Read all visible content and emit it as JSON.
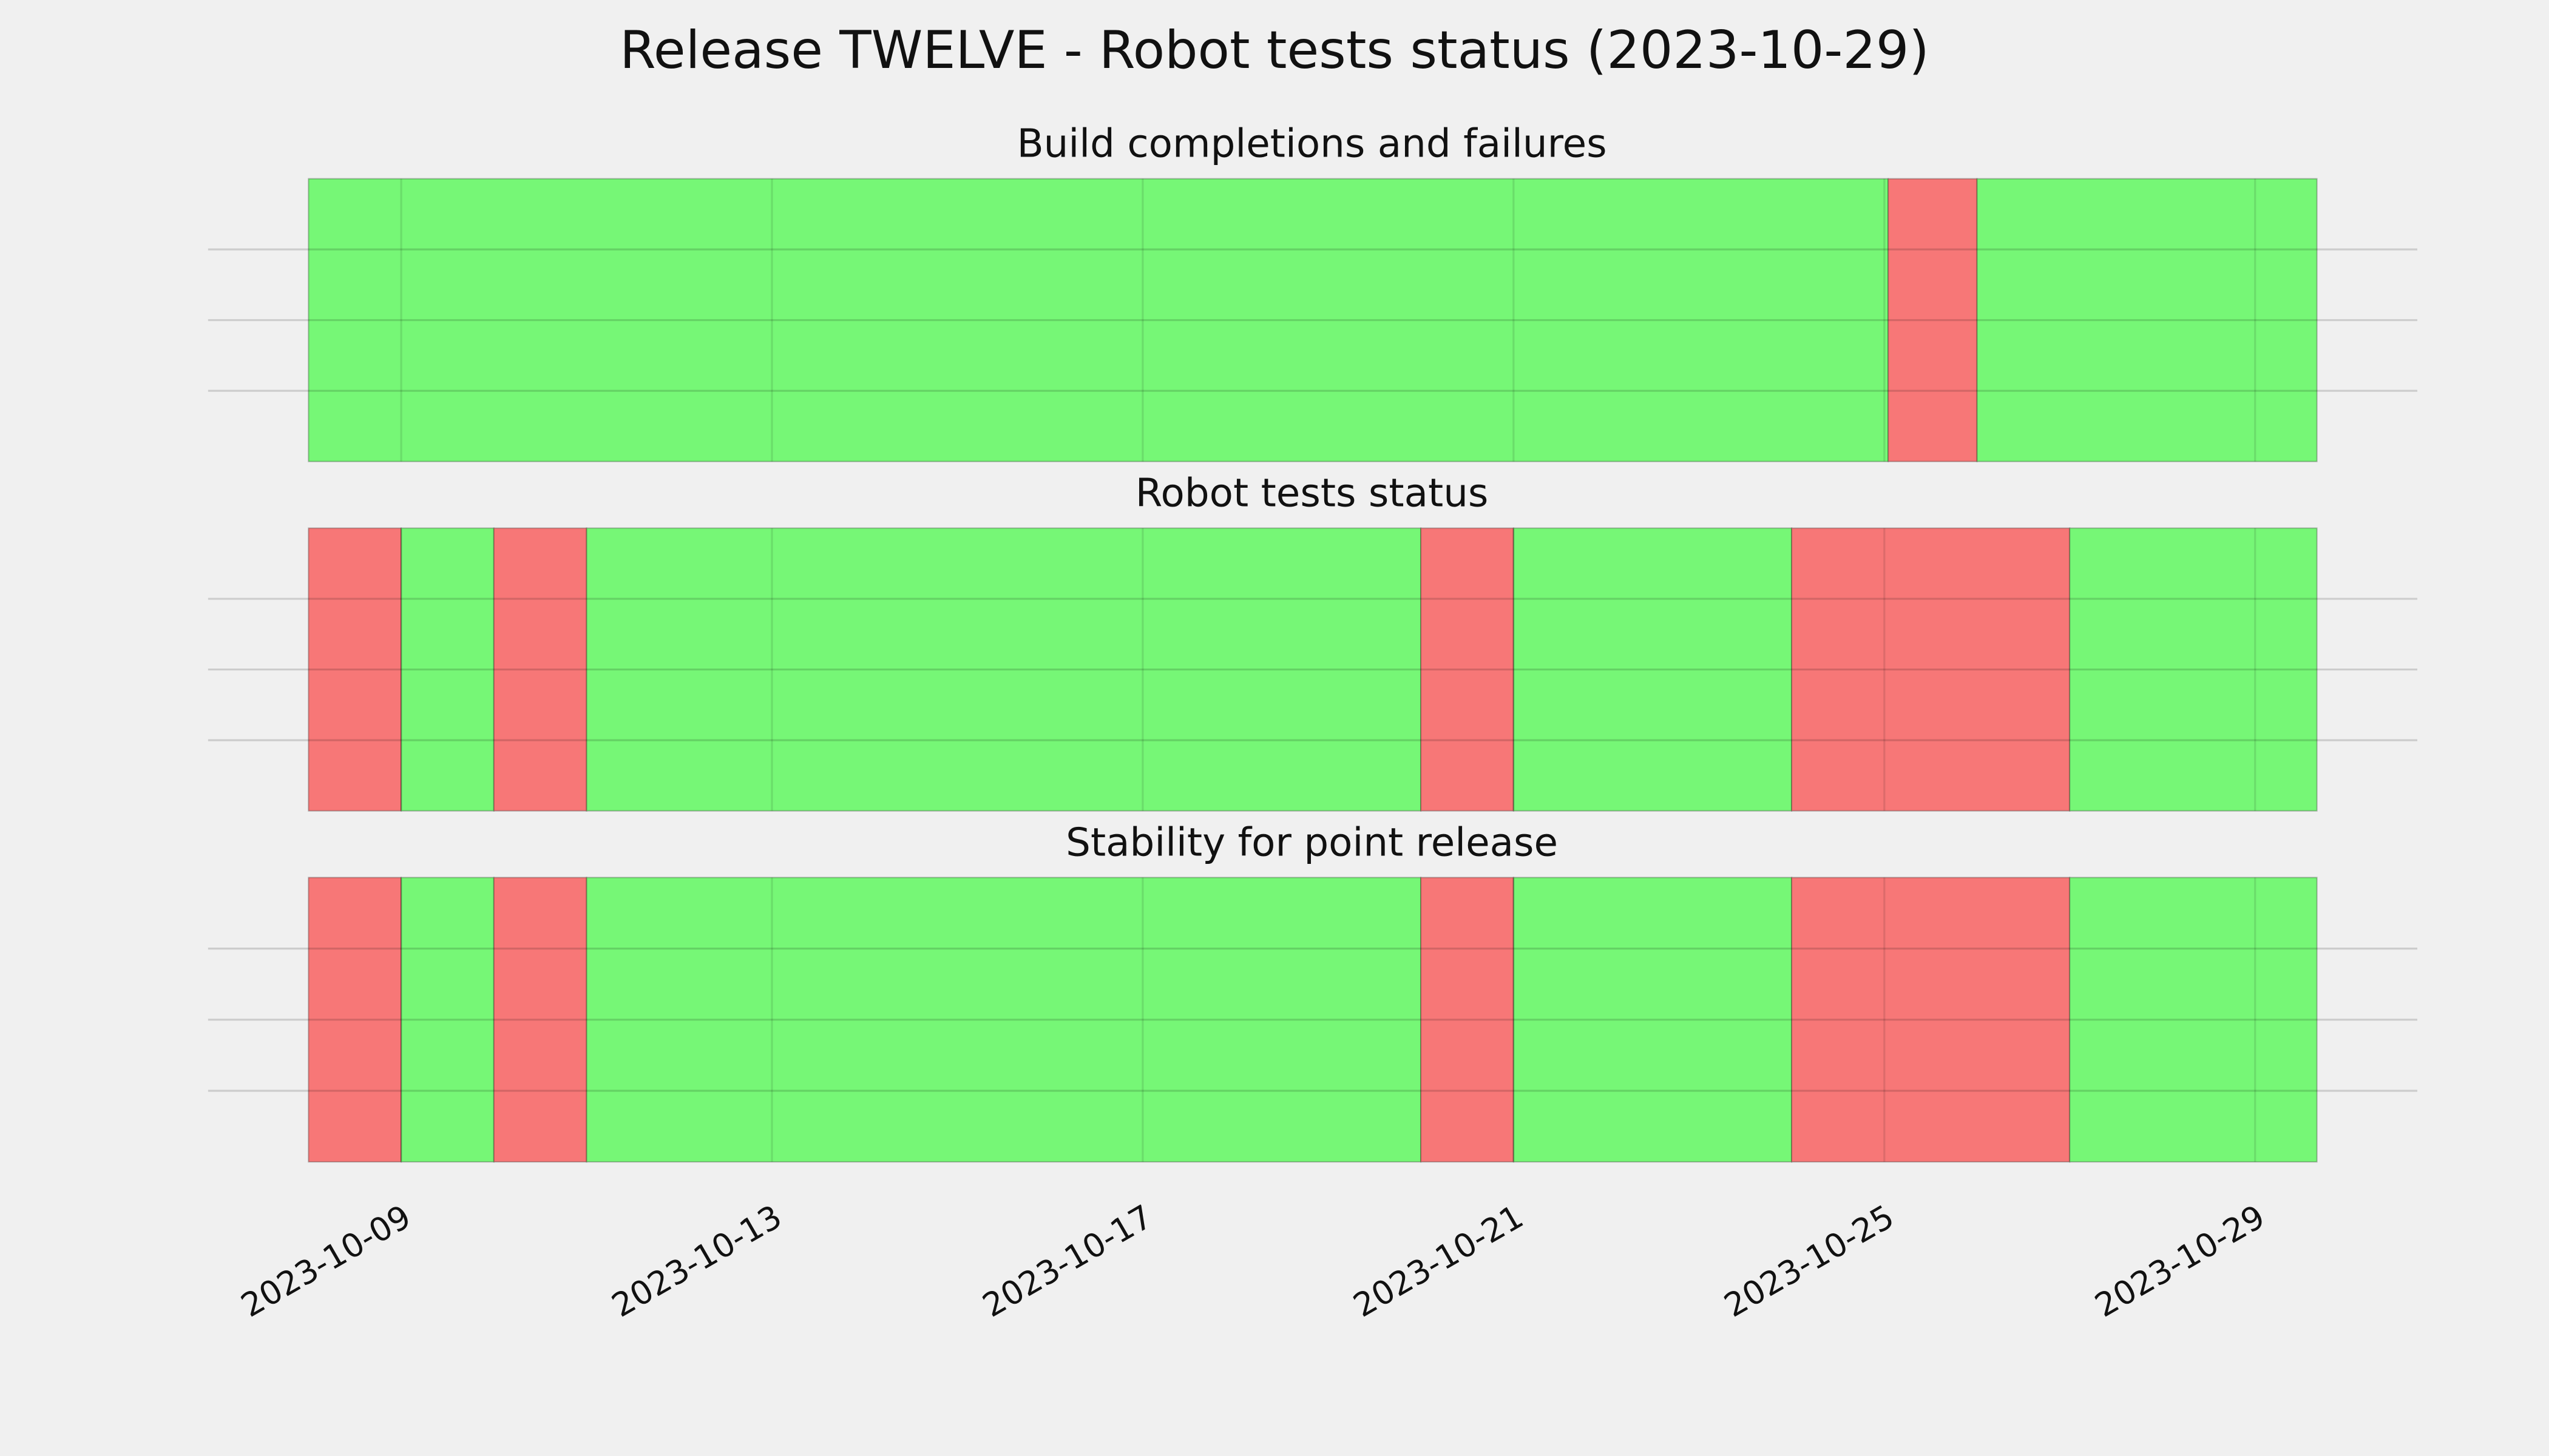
{
  "title": "Release TWELVE - Robot tests status (2023-10-29)",
  "xlim": [
    "2023-10-06T22:00",
    "2023-10-30T18:00"
  ],
  "xticks": [
    "2023-10-09",
    "2023-10-13",
    "2023-10-17",
    "2023-10-21",
    "2023-10-25",
    "2023-10-29"
  ],
  "chart_data": [
    {
      "type": "timeline",
      "title": "Build completions and failures",
      "ylim": [
        0,
        1
      ],
      "yticks": [
        0.25,
        0.5,
        0.75
      ],
      "grid": true,
      "spans": [
        {
          "start": "2023-10-08",
          "end": "2023-10-25T01:00",
          "color": "#76f776"
        },
        {
          "start": "2023-10-25T01:00",
          "end": "2023-10-26",
          "color": "#f77777"
        },
        {
          "start": "2023-10-26",
          "end": "2023-10-29T16:00",
          "color": "#76f776"
        }
      ]
    },
    {
      "type": "timeline",
      "title": "Robot tests status",
      "ylim": [
        0,
        1
      ],
      "yticks": [
        0.25,
        0.5,
        0.75
      ],
      "grid": true,
      "spans": [
        {
          "start": "2023-10-08",
          "end": "2023-10-09",
          "color": "#f77777"
        },
        {
          "start": "2023-10-09",
          "end": "2023-10-10",
          "color": "#76f776"
        },
        {
          "start": "2023-10-10",
          "end": "2023-10-11",
          "color": "#f77777"
        },
        {
          "start": "2023-10-11",
          "end": "2023-10-20",
          "color": "#76f776"
        },
        {
          "start": "2023-10-20",
          "end": "2023-10-21",
          "color": "#f77777"
        },
        {
          "start": "2023-10-21",
          "end": "2023-10-24",
          "color": "#76f776"
        },
        {
          "start": "2023-10-24",
          "end": "2023-10-27",
          "color": "#f77777"
        },
        {
          "start": "2023-10-27",
          "end": "2023-10-29T16:00",
          "color": "#76f776"
        }
      ]
    },
    {
      "type": "timeline",
      "title": "Stability for point release",
      "ylim": [
        0,
        1
      ],
      "yticks": [
        0.25,
        0.5,
        0.75
      ],
      "grid": true,
      "spans": [
        {
          "start": "2023-10-08",
          "end": "2023-10-09",
          "color": "#f77777"
        },
        {
          "start": "2023-10-09",
          "end": "2023-10-10",
          "color": "#76f776"
        },
        {
          "start": "2023-10-10",
          "end": "2023-10-11",
          "color": "#f77777"
        },
        {
          "start": "2023-10-11",
          "end": "2023-10-20",
          "color": "#76f776"
        },
        {
          "start": "2023-10-20",
          "end": "2023-10-21",
          "color": "#f77777"
        },
        {
          "start": "2023-10-21",
          "end": "2023-10-24",
          "color": "#76f776"
        },
        {
          "start": "2023-10-24",
          "end": "2023-10-27",
          "color": "#f77777"
        },
        {
          "start": "2023-10-27",
          "end": "2023-10-29T16:00",
          "color": "#76f776"
        }
      ]
    }
  ]
}
